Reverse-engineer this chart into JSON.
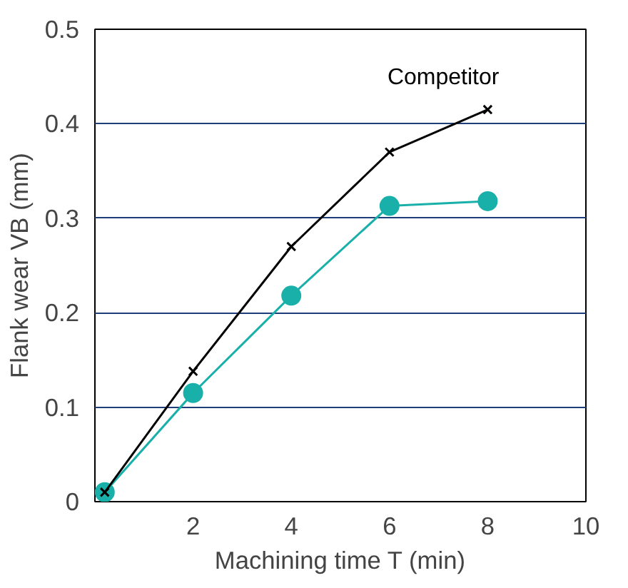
{
  "chart_data": {
    "type": "line",
    "xlabel": "Machining time T (min)",
    "ylabel": "Flank wear VB (mm)",
    "xlim": [
      0,
      10
    ],
    "xticks": [
      2,
      4,
      6,
      8,
      10
    ],
    "ylim": [
      0,
      0.5
    ],
    "yticks": [
      0,
      0.1,
      0.2,
      0.3,
      0.4,
      0.5
    ],
    "grid": "y",
    "series": [
      {
        "name": "Competitor",
        "color": "#000000",
        "marker": "cross",
        "x": [
          0.2,
          2,
          4,
          6,
          8
        ],
        "values": [
          0.01,
          0.138,
          0.27,
          0.37,
          0.415
        ]
      },
      {
        "color": "#1ab0aa",
        "marker": "circle",
        "x": [
          0.2,
          2,
          4,
          6,
          8
        ],
        "values": [
          0.01,
          0.115,
          0.218,
          0.313,
          0.318
        ]
      }
    ]
  }
}
